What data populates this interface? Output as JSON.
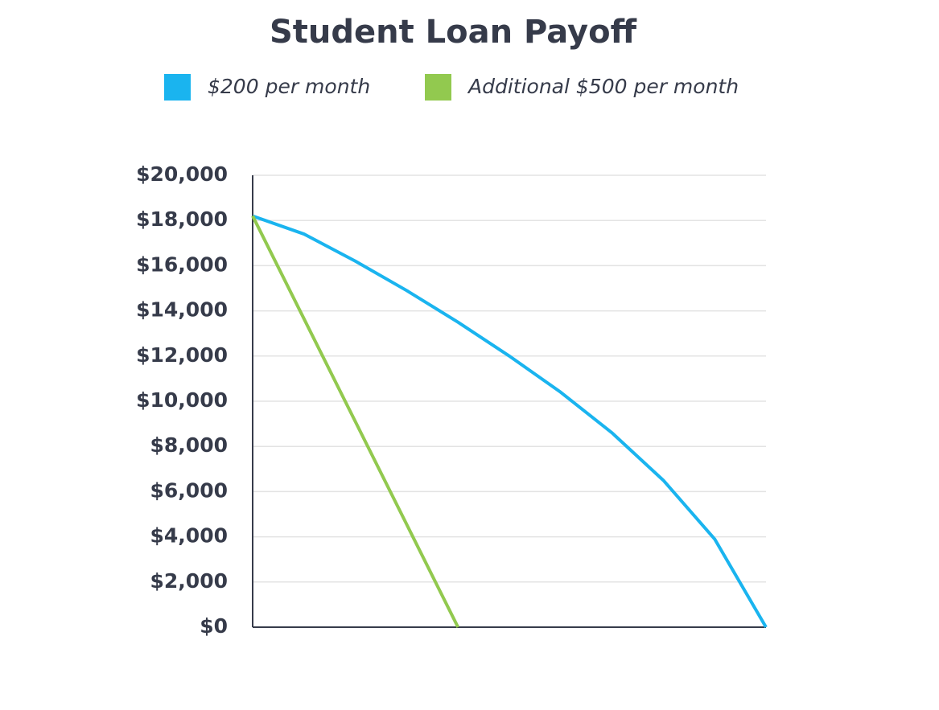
{
  "chart_data": {
    "type": "line",
    "title": "Student Loan Payoff",
    "categories": [
      null,
      null,
      null,
      null,
      null,
      null,
      null,
      null,
      null,
      null,
      null
    ],
    "series": [
      {
        "name": "$200 per month",
        "color": "#1ab4ef",
        "values": [
          18200,
          17400,
          16200,
          14900,
          13500,
          12000,
          10400,
          8600,
          6500,
          3900,
          0
        ]
      },
      {
        "name": "Additional $500 per month",
        "color": "#92c94f",
        "values": [
          18200,
          13650,
          9100,
          4550,
          0,
          null,
          null,
          null,
          null,
          null,
          null
        ]
      }
    ],
    "ylim": [
      0,
      20000
    ],
    "yticks": [
      {
        "value": 0,
        "label": "$0"
      },
      {
        "value": 2000,
        "label": "$2,000"
      },
      {
        "value": 4000,
        "label": "$4,000"
      },
      {
        "value": 6000,
        "label": "$6,000"
      },
      {
        "value": 8000,
        "label": "$8,000"
      },
      {
        "value": 10000,
        "label": "$10,000"
      },
      {
        "value": 12000,
        "label": "$12,000"
      },
      {
        "value": 14000,
        "label": "$14,000"
      },
      {
        "value": 16000,
        "label": "$16,000"
      },
      {
        "value": 18000,
        "label": "$18,000"
      },
      {
        "value": 20000,
        "label": "$20,000"
      }
    ],
    "grid": true
  }
}
